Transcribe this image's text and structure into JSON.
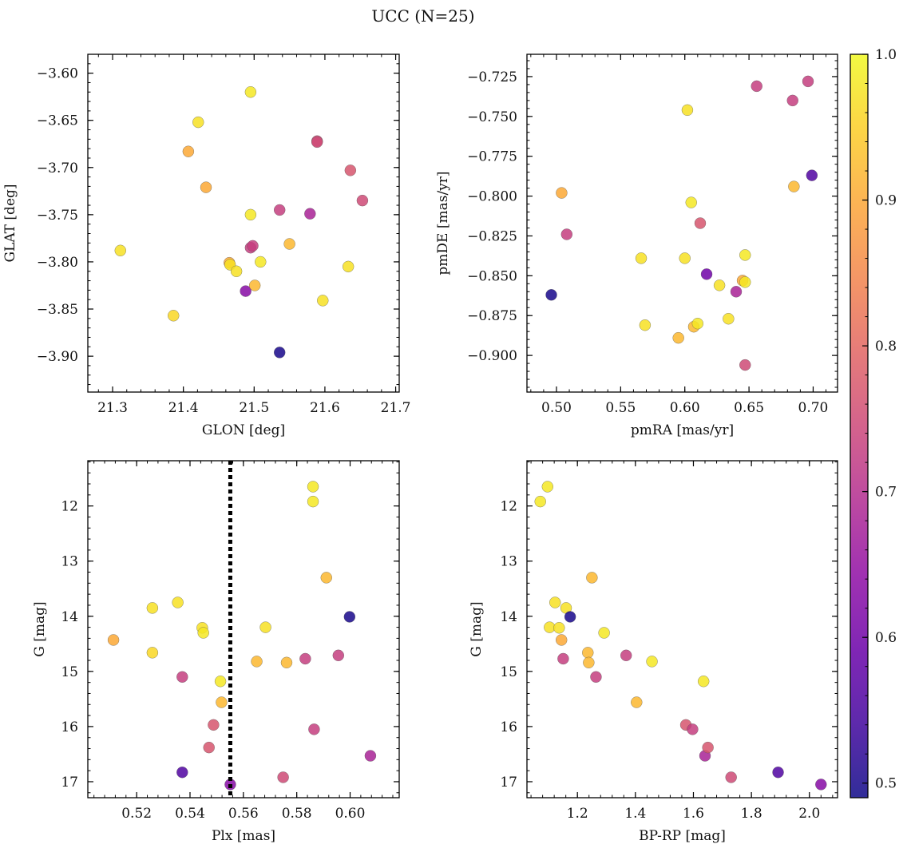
{
  "title": "UCC (N=25)",
  "colorbar": {
    "colormap": "plasma",
    "range": [
      0.49,
      1.0
    ],
    "ticks": [
      0.5,
      0.6,
      0.7,
      0.8,
      0.9,
      1.0
    ],
    "tick_labels": [
      "0.5",
      "0.6",
      "0.7",
      "0.8",
      "0.9",
      "1.0"
    ]
  },
  "chart_data": [
    {
      "type": "scatter",
      "xlabel": "GLON [deg]",
      "ylabel": "GLAT [deg]",
      "xlim": [
        21.265,
        21.705
      ],
      "ylim": [
        -3.938,
        -3.58
      ],
      "x_ticks": [
        21.3,
        21.4,
        21.5,
        21.6,
        21.7
      ],
      "x_tick_labels": [
        "21.3",
        "21.4",
        "21.5",
        "21.6",
        "21.7"
      ],
      "y_ticks": [
        -3.6,
        -3.65,
        -3.7,
        -3.75,
        -3.8,
        -3.85,
        -3.9
      ],
      "y_tick_labels": [
        "−3.60",
        "−3.65",
        "−3.70",
        "−3.75",
        "−3.80",
        "−3.85",
        "−3.90"
      ],
      "invert_y": false,
      "points": [
        {
          "x": 21.311,
          "y": -3.788,
          "c": 0.97
        },
        {
          "x": 21.386,
          "y": -3.857,
          "c": 0.96
        },
        {
          "x": 21.407,
          "y": -3.683,
          "c": 0.9
        },
        {
          "x": 21.421,
          "y": -3.652,
          "c": 0.97
        },
        {
          "x": 21.432,
          "y": -3.721,
          "c": 0.9
        },
        {
          "x": 21.465,
          "y": -3.801,
          "c": 0.9
        },
        {
          "x": 21.466,
          "y": -3.803,
          "c": 0.97
        },
        {
          "x": 21.475,
          "y": -3.81,
          "c": 0.97
        },
        {
          "x": 21.488,
          "y": -3.831,
          "c": 0.63
        },
        {
          "x": 21.495,
          "y": -3.62,
          "c": 0.98
        },
        {
          "x": 21.495,
          "y": -3.75,
          "c": 0.98
        },
        {
          "x": 21.495,
          "y": -3.785,
          "c": 0.73
        },
        {
          "x": 21.498,
          "y": -3.783,
          "c": 0.73
        },
        {
          "x": 21.501,
          "y": -3.825,
          "c": 0.92
        },
        {
          "x": 21.509,
          "y": -3.8,
          "c": 0.98
        },
        {
          "x": 21.536,
          "y": -3.896,
          "c": 0.5
        },
        {
          "x": 21.536,
          "y": -3.745,
          "c": 0.73
        },
        {
          "x": 21.55,
          "y": -3.781,
          "c": 0.92
        },
        {
          "x": 21.579,
          "y": -3.749,
          "c": 0.68
        },
        {
          "x": 21.589,
          "y": -3.672,
          "c": 0.75
        },
        {
          "x": 21.589,
          "y": -3.673,
          "c": 0.75
        },
        {
          "x": 21.597,
          "y": -3.841,
          "c": 0.97
        },
        {
          "x": 21.633,
          "y": -3.805,
          "c": 0.97
        },
        {
          "x": 21.636,
          "y": -3.703,
          "c": 0.77
        },
        {
          "x": 21.653,
          "y": -3.735,
          "c": 0.75
        }
      ]
    },
    {
      "type": "scatter",
      "xlabel": "pmRA [mas/yr]",
      "ylabel": "pmDE [mas/yr]",
      "xlim": [
        0.477,
        0.719
      ],
      "ylim": [
        -0.923,
        -0.711
      ],
      "x_ticks": [
        0.5,
        0.55,
        0.6,
        0.65,
        0.7
      ],
      "x_tick_labels": [
        "0.50",
        "0.55",
        "0.60",
        "0.65",
        "0.70"
      ],
      "y_ticks": [
        -0.725,
        -0.75,
        -0.775,
        -0.8,
        -0.825,
        -0.85,
        -0.875,
        -0.9
      ],
      "y_tick_labels": [
        "−0.725",
        "−0.750",
        "−0.775",
        "−0.800",
        "−0.825",
        "−0.850",
        "−0.875",
        "−0.900"
      ],
      "invert_y": false,
      "points": [
        {
          "x": 0.496,
          "y": -0.862,
          "c": 0.5
        },
        {
          "x": 0.504,
          "y": -0.798,
          "c": 0.9
        },
        {
          "x": 0.508,
          "y": -0.824,
          "c": 0.73
        },
        {
          "x": 0.566,
          "y": -0.839,
          "c": 0.97
        },
        {
          "x": 0.569,
          "y": -0.881,
          "c": 0.97
        },
        {
          "x": 0.595,
          "y": -0.889,
          "c": 0.92
        },
        {
          "x": 0.6,
          "y": -0.839,
          "c": 0.97
        },
        {
          "x": 0.602,
          "y": -0.746,
          "c": 0.97
        },
        {
          "x": 0.605,
          "y": -0.804,
          "c": 0.98
        },
        {
          "x": 0.607,
          "y": -0.882,
          "c": 0.92
        },
        {
          "x": 0.61,
          "y": -0.88,
          "c": 0.98
        },
        {
          "x": 0.612,
          "y": -0.817,
          "c": 0.77
        },
        {
          "x": 0.617,
          "y": -0.849,
          "c": 0.6
        },
        {
          "x": 0.627,
          "y": -0.856,
          "c": 0.97
        },
        {
          "x": 0.634,
          "y": -0.877,
          "c": 0.97
        },
        {
          "x": 0.64,
          "y": -0.86,
          "c": 0.68
        },
        {
          "x": 0.645,
          "y": -0.853,
          "c": 0.9
        },
        {
          "x": 0.647,
          "y": -0.837,
          "c": 0.98
        },
        {
          "x": 0.647,
          "y": -0.854,
          "c": 0.98
        },
        {
          "x": 0.647,
          "y": -0.906,
          "c": 0.75
        },
        {
          "x": 0.656,
          "y": -0.731,
          "c": 0.73
        },
        {
          "x": 0.684,
          "y": -0.74,
          "c": 0.73
        },
        {
          "x": 0.685,
          "y": -0.794,
          "c": 0.92
        },
        {
          "x": 0.696,
          "y": -0.728,
          "c": 0.73
        },
        {
          "x": 0.699,
          "y": -0.787,
          "c": 0.56
        }
      ]
    },
    {
      "type": "scatter",
      "xlabel": "Plx [mas]",
      "ylabel": "G [mag]",
      "xlim": [
        0.5017,
        0.6184
      ],
      "ylim": [
        17.29,
        11.18
      ],
      "x_ticks": [
        0.52,
        0.54,
        0.56,
        0.58,
        0.6
      ],
      "x_tick_labels": [
        "0.52",
        "0.54",
        "0.56",
        "0.58",
        "0.60"
      ],
      "y_ticks": [
        12,
        13,
        14,
        15,
        16,
        17
      ],
      "y_tick_labels": [
        "12",
        "13",
        "14",
        "15",
        "16",
        "17"
      ],
      "invert_y": true,
      "vline": {
        "x": 0.5551,
        "style": "dotted"
      },
      "points": [
        {
          "x": 0.5113,
          "y": 14.43,
          "c": 0.9
        },
        {
          "x": 0.5259,
          "y": 13.85,
          "c": 0.97
        },
        {
          "x": 0.5259,
          "y": 14.66,
          "c": 0.96
        },
        {
          "x": 0.5354,
          "y": 13.75,
          "c": 0.97
        },
        {
          "x": 0.5371,
          "y": 15.1,
          "c": 0.73
        },
        {
          "x": 0.5371,
          "y": 16.83,
          "c": 0.56
        },
        {
          "x": 0.5446,
          "y": 14.21,
          "c": 0.97
        },
        {
          "x": 0.545,
          "y": 14.3,
          "c": 0.98
        },
        {
          "x": 0.5471,
          "y": 16.38,
          "c": 0.77
        },
        {
          "x": 0.5488,
          "y": 15.97,
          "c": 0.77
        },
        {
          "x": 0.5514,
          "y": 15.18,
          "c": 0.98
        },
        {
          "x": 0.5518,
          "y": 15.56,
          "c": 0.92
        },
        {
          "x": 0.5551,
          "y": 17.05,
          "c": 0.63
        },
        {
          "x": 0.565,
          "y": 14.82,
          "c": 0.92
        },
        {
          "x": 0.5683,
          "y": 14.2,
          "c": 0.97
        },
        {
          "x": 0.5749,
          "y": 16.92,
          "c": 0.75
        },
        {
          "x": 0.5762,
          "y": 14.84,
          "c": 0.92
        },
        {
          "x": 0.5832,
          "y": 14.77,
          "c": 0.73
        },
        {
          "x": 0.5861,
          "y": 11.65,
          "c": 0.98
        },
        {
          "x": 0.5861,
          "y": 11.92,
          "c": 0.98
        },
        {
          "x": 0.5865,
          "y": 16.05,
          "c": 0.73
        },
        {
          "x": 0.5911,
          "y": 13.3,
          "c": 0.92
        },
        {
          "x": 0.5956,
          "y": 14.71,
          "c": 0.73
        },
        {
          "x": 0.5998,
          "y": 14.01,
          "c": 0.5
        },
        {
          "x": 0.6076,
          "y": 16.53,
          "c": 0.68
        }
      ]
    },
    {
      "type": "scatter",
      "xlabel": "BP-RP [mag]",
      "ylabel": "G [mag]",
      "xlim": [
        1.026,
        2.097
      ],
      "ylim": [
        17.29,
        11.18
      ],
      "x_ticks": [
        1.2,
        1.4,
        1.6,
        1.8,
        2.0
      ],
      "x_tick_labels": [
        "1.2",
        "1.4",
        "1.6",
        "1.8",
        "2.0"
      ],
      "y_ticks": [
        12,
        13,
        14,
        15,
        16,
        17
      ],
      "y_tick_labels": [
        "12",
        "13",
        "14",
        "15",
        "16",
        "17"
      ],
      "invert_y": true,
      "points": [
        {
          "x": 1.072,
          "y": 11.92,
          "c": 0.98
        },
        {
          "x": 1.097,
          "y": 11.65,
          "c": 0.98
        },
        {
          "x": 1.104,
          "y": 14.2,
          "c": 0.97
        },
        {
          "x": 1.123,
          "y": 13.75,
          "c": 0.97
        },
        {
          "x": 1.137,
          "y": 14.21,
          "c": 0.97
        },
        {
          "x": 1.145,
          "y": 14.43,
          "c": 0.9
        },
        {
          "x": 1.151,
          "y": 14.77,
          "c": 0.73
        },
        {
          "x": 1.161,
          "y": 13.85,
          "c": 0.97
        },
        {
          "x": 1.175,
          "y": 14.01,
          "c": 0.5
        },
        {
          "x": 1.236,
          "y": 14.66,
          "c": 0.92
        },
        {
          "x": 1.239,
          "y": 14.84,
          "c": 0.92
        },
        {
          "x": 1.25,
          "y": 13.3,
          "c": 0.92
        },
        {
          "x": 1.264,
          "y": 15.1,
          "c": 0.73
        },
        {
          "x": 1.292,
          "y": 14.3,
          "c": 0.98
        },
        {
          "x": 1.368,
          "y": 14.71,
          "c": 0.73
        },
        {
          "x": 1.404,
          "y": 15.56,
          "c": 0.92
        },
        {
          "x": 1.457,
          "y": 14.82,
          "c": 0.98
        },
        {
          "x": 1.574,
          "y": 15.97,
          "c": 0.77
        },
        {
          "x": 1.597,
          "y": 16.05,
          "c": 0.73
        },
        {
          "x": 1.635,
          "y": 15.18,
          "c": 0.98
        },
        {
          "x": 1.64,
          "y": 16.53,
          "c": 0.68
        },
        {
          "x": 1.65,
          "y": 16.38,
          "c": 0.77
        },
        {
          "x": 1.73,
          "y": 16.92,
          "c": 0.75
        },
        {
          "x": 1.892,
          "y": 16.83,
          "c": 0.56
        },
        {
          "x": 2.04,
          "y": 17.05,
          "c": 0.63
        }
      ]
    }
  ]
}
